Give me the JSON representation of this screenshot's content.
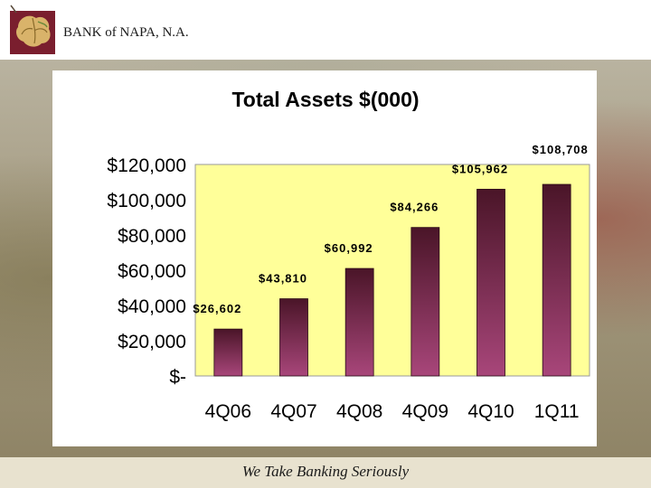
{
  "header": {
    "bank_name": "BANK of NAPA, N.A."
  },
  "footer": {
    "tagline": "We Take Banking Seriously"
  },
  "colors": {
    "bar_top": "#4a1528",
    "bar_bottom": "#a8467a",
    "plot_bg": "#ffff99"
  },
  "chart_data": {
    "type": "bar",
    "title": "Total Assets $(000)",
    "xlabel": "",
    "ylabel": "",
    "categories": [
      "4Q06",
      "4Q07",
      "4Q08",
      "4Q09",
      "4Q10",
      "1Q11"
    ],
    "values": [
      26602,
      43810,
      60992,
      84266,
      105962,
      108708
    ],
    "value_labels": [
      "$26,602",
      "$43,810",
      "$60,992",
      "$84,266",
      "$105,962",
      "$108,708"
    ],
    "yticks": [
      0,
      20000,
      40000,
      60000,
      80000,
      100000,
      120000
    ],
    "ytick_labels": [
      "$-",
      "$20,000",
      "$40,000",
      "$60,000",
      "$80,000",
      "$100,000",
      "$120,000"
    ],
    "ylim": [
      0,
      120000
    ],
    "grid": false,
    "legend": "none"
  }
}
